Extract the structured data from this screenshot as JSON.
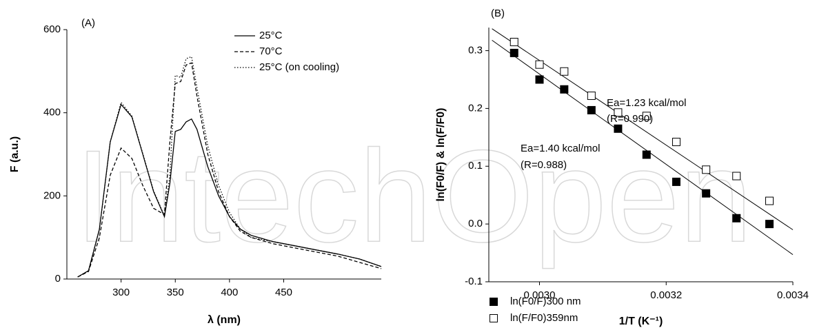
{
  "chart_data": [
    {
      "type": "line",
      "panel_label": "(A)",
      "x_label": "λ (nm)",
      "y_label": "F (a.u.)",
      "xlim": [
        250,
        540
      ],
      "ylim": [
        0,
        600
      ],
      "xticks": [
        300,
        350,
        400,
        450
      ],
      "yticks": [
        0,
        200,
        400,
        600
      ],
      "x": [
        260,
        270,
        280,
        290,
        300,
        310,
        320,
        330,
        340,
        345,
        350,
        355,
        360,
        365,
        370,
        380,
        390,
        400,
        410,
        420,
        440,
        460,
        480,
        500,
        520,
        540
      ],
      "series": [
        {
          "name": "25°C",
          "color": "#000000",
          "line_style": "solid",
          "values": [
            5,
            20,
            120,
            330,
            420,
            390,
            300,
            210,
            150,
            230,
            355,
            360,
            378,
            385,
            360,
            270,
            200,
            150,
            120,
            105,
            90,
            80,
            70,
            60,
            48,
            30
          ]
        },
        {
          "name": "70°C",
          "color": "#000000",
          "line_style": "dashed",
          "values": [
            5,
            18,
            100,
            250,
            315,
            290,
            225,
            170,
            155,
            330,
            470,
            475,
            515,
            520,
            440,
            300,
            210,
            150,
            115,
            100,
            85,
            75,
            65,
            55,
            40,
            25
          ]
        },
        {
          "name": "25°C (on cooling)",
          "color": "#000000",
          "line_style": "dotted",
          "values": [
            5,
            20,
            120,
            330,
            425,
            392,
            302,
            212,
            152,
            250,
            490,
            485,
            530,
            535,
            460,
            320,
            225,
            160,
            120,
            100,
            90,
            80,
            70,
            60,
            48,
            30
          ]
        }
      ]
    },
    {
      "type": "scatter",
      "panel_label": "(B)",
      "x_label": "1/T (K⁻¹)",
      "y_label": "ln(F0/F) & ln(F/F0)",
      "xlim": [
        0.00292,
        0.0034
      ],
      "ylim": [
        -0.1,
        0.34
      ],
      "xticks": [
        {
          "value": 0.003,
          "label": "0.0030"
        },
        {
          "value": 0.0032,
          "label": "0.0032"
        },
        {
          "value": 0.0034,
          "label": "0.0034"
        }
      ],
      "yticks": [
        -0.1,
        {
          "value": 0,
          "label": "0.0"
        },
        0.1,
        0.2,
        0.3
      ],
      "x": [
        0.00296,
        0.003,
        0.003039,
        0.003082,
        0.003124,
        0.003169,
        0.003216,
        0.003263,
        0.003311,
        0.003363
      ],
      "series": [
        {
          "name": "ln(F0/F)300 nm",
          "color": "#000000",
          "marker_fill": true,
          "values": [
            0.296,
            0.25,
            0.233,
            0.197,
            0.165,
            0.12,
            0.073,
            0.053,
            0.01,
            0.0
          ]
        },
        {
          "name": "ln(F/F0)359nm",
          "color": "#000000",
          "marker_fill": false,
          "values": [
            0.315,
            0.276,
            0.264,
            0.222,
            0.193,
            0.187,
            0.142,
            0.094,
            0.083,
            0.04
          ]
        }
      ],
      "fits": [
        {
          "x": [
            0.002925,
            0.0034
          ],
          "values": [
            0.318,
            -0.053
          ]
        },
        {
          "x": [
            0.002925,
            0.0034
          ],
          "values": [
            0.338,
            -0.01
          ]
        }
      ],
      "annotations": [
        "Ea=1.23 kcal/mol",
        "(R=0.990)",
        "Ea=1.40 kcal/mol",
        "(R=0.988)"
      ]
    }
  ],
  "watermark": "IntechOpen"
}
